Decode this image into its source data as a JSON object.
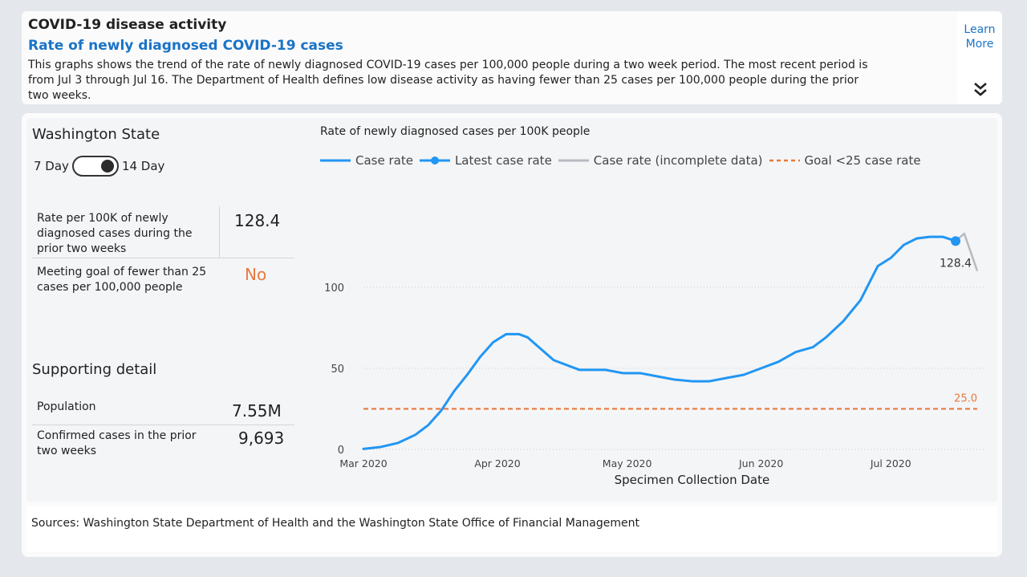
{
  "header": {
    "title": "COVID-19 disease activity",
    "subtitle": "Rate of newly diagnosed COVID-19 cases",
    "description": "This graphs shows the trend of the rate of newly diagnosed COVID-19 cases per 100,000 people during a two week period. The most recent period is from Jul 3 through Jul 16. The Department of Health defines low disease activity as having fewer than 25 cases per 100,000 people during the prior two weeks.",
    "learn_more_line1": "Learn",
    "learn_more_line2": "More",
    "expand_icon": "double-chevron-down-icon"
  },
  "summary": {
    "region": "Washington State",
    "toggle": {
      "left_label": "7 Day",
      "right_label": "14 Day",
      "selected": "14 Day"
    },
    "stats": [
      {
        "label": "Rate per 100K of newly diagnosed cases during the prior two weeks",
        "value": "128.4"
      },
      {
        "label": "Meeting goal of fewer than 25 cases per 100,000 people",
        "value": "No"
      }
    ],
    "supporting_title": "Supporting detail",
    "supporting": [
      {
        "label": "Population",
        "value": "7.55M"
      },
      {
        "label": "Confirmed cases in the prior two weeks",
        "value": "9,693"
      }
    ]
  },
  "colors": {
    "accent": "#1a73c6",
    "case_rate": "#2196f3",
    "incomplete": "#b7bbc0",
    "goal": "#e8793e",
    "no_value": "#e8793e"
  },
  "chart": {
    "title": "Rate of newly diagnosed cases per 100K people",
    "legend": [
      "Case rate",
      "Latest case rate",
      "Case rate (incomplete data)",
      "Goal <25 case rate"
    ]
  },
  "chart_data": {
    "type": "line",
    "title": "Rate of newly diagnosed cases per 100K people",
    "xlabel": "Specimen Collection Date",
    "ylabel": "",
    "x_ticks": [
      "Mar 2020",
      "Apr 2020",
      "May 2020",
      "Jun 2020",
      "Jul 2020"
    ],
    "x_tick_dates": [
      "2020-03-01",
      "2020-04-01",
      "2020-05-01",
      "2020-06-01",
      "2020-07-01"
    ],
    "y_ticks": [
      0,
      50,
      100
    ],
    "ylim": [
      0,
      135
    ],
    "grid": "horizontal dotted",
    "legend_position": "top",
    "series": [
      {
        "name": "Case rate",
        "x": [
          "2020-03-01",
          "2020-03-05",
          "2020-03-09",
          "2020-03-13",
          "2020-03-16",
          "2020-03-19",
          "2020-03-22",
          "2020-03-25",
          "2020-03-28",
          "2020-03-31",
          "2020-04-03",
          "2020-04-06",
          "2020-04-08",
          "2020-04-11",
          "2020-04-14",
          "2020-04-17",
          "2020-04-20",
          "2020-04-23",
          "2020-04-26",
          "2020-04-30",
          "2020-05-04",
          "2020-05-08",
          "2020-05-12",
          "2020-05-16",
          "2020-05-20",
          "2020-05-24",
          "2020-05-28",
          "2020-06-01",
          "2020-06-05",
          "2020-06-09",
          "2020-06-13",
          "2020-06-16",
          "2020-06-20",
          "2020-06-24",
          "2020-06-28",
          "2020-07-01",
          "2020-07-04",
          "2020-07-07",
          "2020-07-10",
          "2020-07-13",
          "2020-07-16"
        ],
        "y": [
          0.3,
          1.5,
          4,
          9,
          15,
          24,
          36,
          46,
          57,
          66,
          71,
          71,
          69,
          62,
          55,
          52,
          49,
          49,
          49,
          47,
          47,
          45,
          43,
          42,
          42,
          44,
          46,
          50,
          54,
          60,
          63,
          69,
          79,
          92,
          113,
          118,
          126,
          130,
          131,
          131,
          128.4
        ]
      },
      {
        "name": "Latest case rate",
        "x": [
          "2020-07-16"
        ],
        "y": [
          128.4
        ]
      },
      {
        "name": "Case rate (incomplete data)",
        "x": [
          "2020-07-16",
          "2020-07-18",
          "2020-07-21"
        ],
        "y": [
          128.4,
          133,
          110
        ]
      },
      {
        "name": "Goal <25 case rate",
        "x": [
          "2020-03-01",
          "2020-07-21"
        ],
        "y": [
          25,
          25
        ]
      }
    ],
    "annotations": [
      {
        "text": "128.4",
        "x": "2020-07-16",
        "y": 128.4
      },
      {
        "text": "25.0",
        "x": "2020-07-21",
        "y": 25
      }
    ]
  },
  "footer": {
    "sources": "Sources: Washington State Department of Health and the Washington State Office of Financial Management"
  }
}
